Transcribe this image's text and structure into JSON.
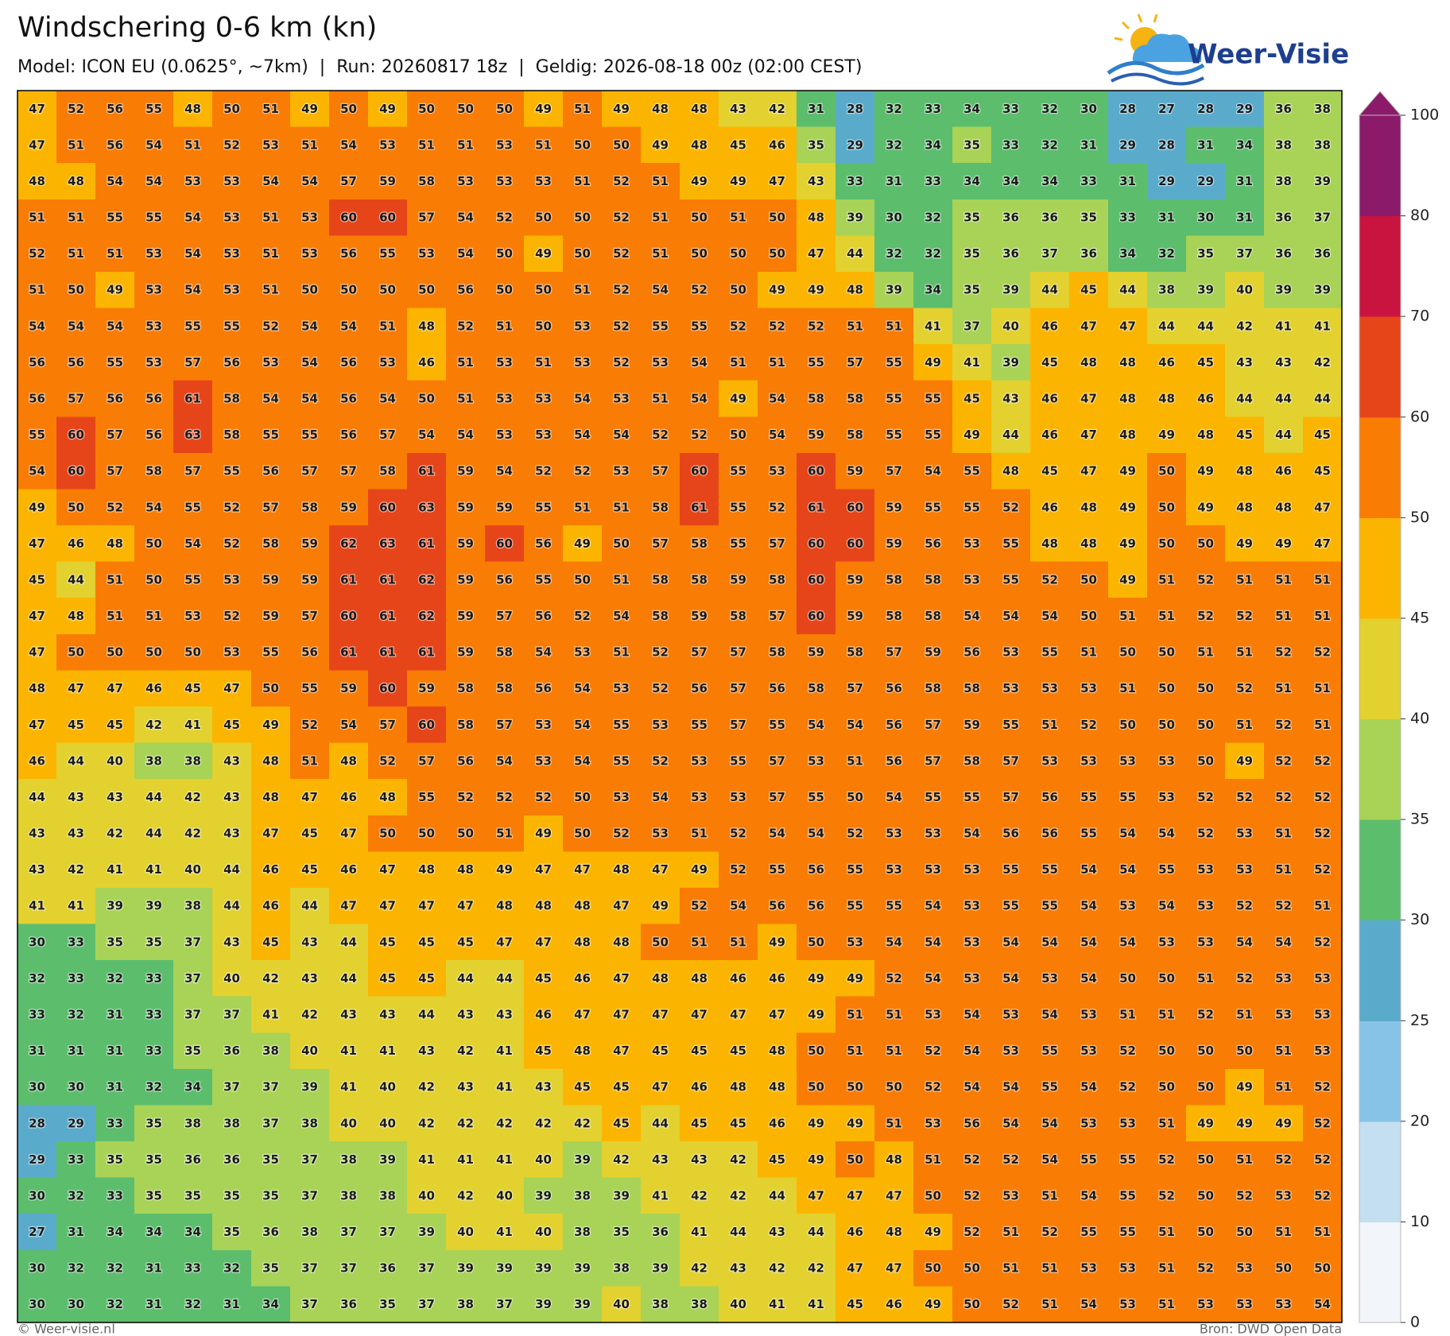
{
  "header": {
    "title": "Windschering 0-6 km (kn)",
    "subtitle": "Model: ICON EU (0.0625°, ~7km)  |  Run: 20260817 18z  |  Geldig: 2026-08-18 00z (02:00 CEST)"
  },
  "logo": {
    "text": "Weer-Visie"
  },
  "grid": {
    "rows": [
      [
        47,
        52,
        56,
        55,
        48,
        50,
        51,
        49,
        50,
        49,
        50,
        50,
        50,
        49,
        51,
        49,
        48,
        48,
        43,
        42,
        31,
        28,
        32,
        33,
        34,
        33,
        32,
        30,
        28,
        27,
        28,
        29,
        36,
        38
      ],
      [
        47,
        51,
        56,
        54,
        51,
        52,
        53,
        51,
        54,
        53,
        51,
        51,
        53,
        51,
        50,
        50,
        49,
        48,
        45,
        46,
        35,
        29,
        32,
        34,
        35,
        33,
        32,
        31,
        29,
        28,
        31,
        34,
        38,
        38
      ],
      [
        48,
        48,
        54,
        54,
        53,
        53,
        54,
        54,
        57,
        59,
        58,
        53,
        53,
        53,
        51,
        52,
        51,
        49,
        49,
        47,
        43,
        33,
        31,
        33,
        34,
        34,
        34,
        33,
        31,
        29,
        29,
        31,
        38,
        39
      ],
      [
        51,
        51,
        55,
        55,
        54,
        53,
        51,
        53,
        60,
        60,
        57,
        54,
        52,
        50,
        50,
        52,
        51,
        50,
        51,
        50,
        48,
        39,
        30,
        32,
        35,
        36,
        36,
        35,
        33,
        31,
        30,
        31,
        36,
        37
      ],
      [
        52,
        51,
        51,
        53,
        54,
        53,
        51,
        53,
        56,
        55,
        53,
        54,
        50,
        49,
        50,
        52,
        51,
        50,
        50,
        50,
        47,
        44,
        32,
        32,
        35,
        36,
        37,
        36,
        34,
        32,
        35,
        37,
        36,
        36
      ],
      [
        51,
        50,
        49,
        53,
        54,
        53,
        51,
        50,
        50,
        50,
        50,
        56,
        50,
        50,
        51,
        52,
        54,
        52,
        50,
        49,
        49,
        48,
        39,
        34,
        35,
        39,
        44,
        45,
        44,
        38,
        39,
        40,
        39,
        39
      ],
      [
        54,
        54,
        54,
        53,
        55,
        55,
        52,
        54,
        54,
        51,
        48,
        52,
        51,
        50,
        53,
        52,
        55,
        55,
        52,
        52,
        52,
        51,
        51,
        41,
        37,
        40,
        46,
        47,
        47,
        44,
        44,
        42,
        41,
        41
      ],
      [
        56,
        56,
        55,
        53,
        57,
        56,
        53,
        54,
        56,
        53,
        46,
        51,
        53,
        51,
        53,
        52,
        53,
        54,
        51,
        51,
        55,
        57,
        55,
        49,
        41,
        39,
        45,
        48,
        48,
        46,
        45,
        43,
        43,
        42
      ],
      [
        56,
        57,
        56,
        56,
        61,
        58,
        54,
        54,
        56,
        54,
        50,
        51,
        53,
        53,
        54,
        53,
        51,
        54,
        49,
        54,
        58,
        58,
        55,
        55,
        45,
        43,
        46,
        47,
        48,
        48,
        46,
        44,
        44,
        44
      ],
      [
        55,
        60,
        57,
        56,
        63,
        58,
        55,
        55,
        56,
        57,
        54,
        54,
        53,
        53,
        54,
        54,
        52,
        52,
        50,
        54,
        59,
        58,
        55,
        55,
        49,
        44,
        46,
        47,
        48,
        49,
        48,
        45,
        44,
        45
      ],
      [
        54,
        60,
        57,
        58,
        57,
        55,
        56,
        57,
        57,
        58,
        61,
        59,
        54,
        52,
        52,
        53,
        57,
        60,
        55,
        53,
        60,
        59,
        57,
        54,
        55,
        48,
        45,
        47,
        49,
        50,
        49,
        48,
        46,
        45
      ],
      [
        49,
        50,
        52,
        54,
        55,
        52,
        57,
        58,
        59,
        60,
        63,
        59,
        59,
        55,
        51,
        51,
        58,
        61,
        55,
        52,
        61,
        60,
        59,
        55,
        55,
        52,
        46,
        48,
        49,
        50,
        49,
        48,
        48,
        47
      ],
      [
        47,
        46,
        48,
        50,
        54,
        52,
        58,
        59,
        62,
        63,
        61,
        59,
        60,
        56,
        49,
        50,
        57,
        58,
        55,
        57,
        60,
        60,
        59,
        56,
        53,
        55,
        48,
        48,
        49,
        50,
        50,
        49,
        49,
        47
      ],
      [
        45,
        44,
        51,
        50,
        55,
        53,
        59,
        59,
        61,
        61,
        62,
        59,
        56,
        55,
        50,
        51,
        58,
        58,
        59,
        58,
        60,
        59,
        58,
        58,
        53,
        55,
        52,
        50,
        49,
        51,
        52,
        51,
        51,
        51
      ],
      [
        47,
        48,
        51,
        51,
        53,
        52,
        59,
        57,
        60,
        61,
        62,
        59,
        57,
        56,
        52,
        54,
        58,
        59,
        58,
        57,
        60,
        59,
        58,
        58,
        54,
        54,
        54,
        50,
        51,
        51,
        52,
        52,
        51,
        51
      ],
      [
        47,
        50,
        50,
        50,
        50,
        53,
        55,
        56,
        61,
        61,
        61,
        59,
        58,
        54,
        53,
        51,
        52,
        57,
        57,
        58,
        59,
        58,
        57,
        59,
        56,
        53,
        55,
        51,
        50,
        50,
        51,
        51,
        52,
        52
      ],
      [
        48,
        47,
        47,
        46,
        45,
        47,
        50,
        55,
        59,
        60,
        59,
        58,
        58,
        56,
        54,
        53,
        52,
        56,
        57,
        56,
        58,
        57,
        56,
        58,
        58,
        53,
        53,
        53,
        51,
        50,
        50,
        52,
        51,
        51
      ],
      [
        47,
        45,
        45,
        42,
        41,
        45,
        49,
        52,
        54,
        57,
        60,
        58,
        57,
        53,
        54,
        55,
        53,
        55,
        57,
        55,
        54,
        54,
        56,
        57,
        59,
        55,
        51,
        52,
        50,
        50,
        50,
        51,
        52,
        51
      ],
      [
        46,
        44,
        40,
        38,
        38,
        43,
        48,
        51,
        48,
        52,
        57,
        56,
        54,
        53,
        54,
        55,
        52,
        53,
        55,
        57,
        53,
        51,
        56,
        57,
        58,
        57,
        53,
        53,
        53,
        53,
        50,
        49,
        52,
        52
      ],
      [
        44,
        43,
        43,
        44,
        42,
        43,
        48,
        47,
        46,
        48,
        55,
        52,
        52,
        52,
        50,
        53,
        54,
        53,
        53,
        57,
        55,
        50,
        54,
        55,
        55,
        57,
        56,
        55,
        55,
        53,
        52,
        52,
        52,
        52
      ],
      [
        43,
        43,
        42,
        44,
        42,
        43,
        47,
        45,
        47,
        50,
        50,
        50,
        51,
        49,
        50,
        52,
        53,
        51,
        52,
        54,
        54,
        52,
        53,
        53,
        54,
        56,
        56,
        55,
        54,
        54,
        52,
        53,
        51,
        52
      ],
      [
        43,
        42,
        41,
        41,
        40,
        44,
        46,
        45,
        46,
        47,
        48,
        48,
        49,
        47,
        47,
        48,
        47,
        49,
        52,
        55,
        56,
        55,
        53,
        53,
        53,
        55,
        55,
        54,
        54,
        55,
        53,
        53,
        51,
        52
      ],
      [
        41,
        41,
        39,
        39,
        38,
        44,
        46,
        44,
        47,
        47,
        47,
        47,
        48,
        48,
        48,
        47,
        49,
        52,
        54,
        56,
        56,
        55,
        55,
        54,
        53,
        55,
        55,
        54,
        53,
        54,
        53,
        52,
        52,
        51
      ],
      [
        30,
        33,
        35,
        35,
        37,
        43,
        45,
        43,
        44,
        45,
        45,
        45,
        47,
        47,
        48,
        48,
        50,
        51,
        51,
        49,
        50,
        53,
        54,
        54,
        53,
        54,
        54,
        54,
        54,
        53,
        53,
        54,
        54,
        52
      ],
      [
        32,
        33,
        32,
        33,
        37,
        40,
        42,
        43,
        44,
        45,
        45,
        44,
        44,
        45,
        46,
        47,
        48,
        48,
        46,
        46,
        49,
        49,
        52,
        54,
        53,
        54,
        53,
        54,
        50,
        50,
        51,
        52,
        53,
        53
      ],
      [
        33,
        32,
        31,
        33,
        37,
        37,
        41,
        42,
        43,
        43,
        44,
        43,
        43,
        46,
        47,
        47,
        47,
        47,
        47,
        47,
        49,
        51,
        51,
        53,
        54,
        53,
        54,
        53,
        51,
        51,
        52,
        51,
        53,
        53
      ],
      [
        31,
        31,
        31,
        33,
        35,
        36,
        38,
        40,
        41,
        41,
        43,
        42,
        41,
        45,
        48,
        47,
        45,
        45,
        45,
        48,
        50,
        51,
        51,
        52,
        54,
        53,
        55,
        53,
        52,
        50,
        50,
        50,
        51,
        53
      ],
      [
        30,
        30,
        31,
        32,
        34,
        37,
        37,
        39,
        41,
        40,
        42,
        43,
        41,
        43,
        45,
        45,
        47,
        46,
        48,
        48,
        50,
        50,
        50,
        52,
        54,
        54,
        55,
        54,
        52,
        50,
        50,
        49,
        51,
        52
      ],
      [
        28,
        29,
        33,
        35,
        38,
        38,
        37,
        38,
        40,
        40,
        42,
        42,
        42,
        42,
        42,
        45,
        44,
        45,
        45,
        46,
        49,
        49,
        51,
        53,
        56,
        54,
        54,
        53,
        53,
        51,
        49,
        49,
        49,
        52
      ],
      [
        29,
        33,
        35,
        35,
        36,
        36,
        35,
        37,
        38,
        39,
        41,
        41,
        41,
        40,
        39,
        42,
        43,
        43,
        42,
        45,
        49,
        50,
        48,
        51,
        52,
        52,
        54,
        55,
        55,
        52,
        50,
        51,
        52,
        52
      ],
      [
        30,
        32,
        33,
        35,
        35,
        35,
        35,
        37,
        38,
        38,
        40,
        42,
        40,
        39,
        38,
        39,
        41,
        42,
        42,
        44,
        47,
        47,
        47,
        50,
        52,
        53,
        51,
        54,
        55,
        52,
        50,
        52,
        53,
        52
      ],
      [
        27,
        31,
        34,
        34,
        34,
        35,
        36,
        38,
        37,
        37,
        39,
        40,
        41,
        40,
        38,
        35,
        36,
        41,
        44,
        43,
        44,
        46,
        48,
        49,
        52,
        51,
        52,
        55,
        55,
        51,
        50,
        50,
        51,
        51
      ],
      [
        30,
        32,
        32,
        31,
        33,
        32,
        35,
        37,
        37,
        36,
        37,
        39,
        39,
        39,
        39,
        38,
        39,
        42,
        43,
        42,
        42,
        47,
        47,
        50,
        50,
        51,
        51,
        53,
        53,
        51,
        52,
        53,
        50,
        50
      ],
      [
        30,
        30,
        32,
        31,
        32,
        31,
        34,
        37,
        36,
        35,
        37,
        38,
        37,
        39,
        39,
        40,
        38,
        38,
        40,
        41,
        41,
        45,
        46,
        49,
        50,
        52,
        51,
        54,
        53,
        51,
        53,
        53,
        53,
        54
      ]
    ]
  },
  "colorbar": {
    "ticks": [
      0,
      10,
      20,
      25,
      30,
      35,
      40,
      45,
      50,
      60,
      70,
      80,
      100
    ],
    "colors": [
      "#f2f6fa",
      "#c3dff0",
      "#87c3e6",
      "#5aabcb",
      "#5cbd6d",
      "#a8d356",
      "#e2d12f",
      "#fbb500",
      "#f97c05",
      "#e6451a",
      "#c8143e",
      "#8b1a6a"
    ]
  },
  "footer": {
    "left": "© Weer-visie.nl",
    "right": "Bron: DWD Open Data"
  }
}
